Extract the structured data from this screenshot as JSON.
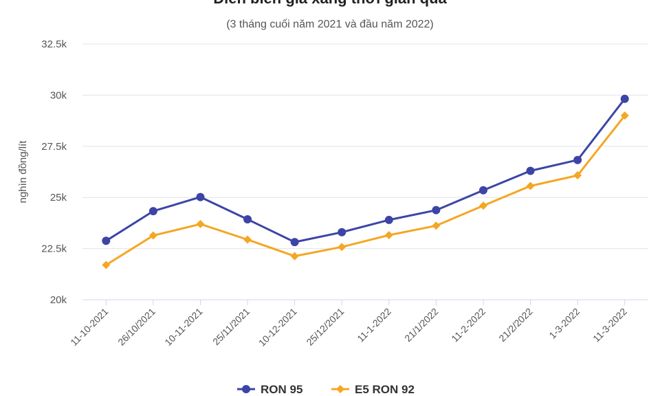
{
  "chart_data": {
    "type": "line",
    "title": "Diễn biến giá xăng thời gian qua",
    "subtitle": "(3 tháng cuối năm 2021 và đầu năm 2022)",
    "ylabel": "nghìn đồng/lít",
    "xlabel": "",
    "ylim": [
      20000,
      32500
    ],
    "yticks": [
      20000,
      22500,
      25000,
      27500,
      30000,
      32500
    ],
    "ytick_labels": [
      "20k",
      "22.5k",
      "25k",
      "27.5k",
      "30k",
      "32.5k"
    ],
    "grid": true,
    "legend_position": "bottom",
    "categories": [
      "11-10-2021",
      "26/10/2021",
      "10-11-2021",
      "25/11/2021",
      "10-12-2021",
      "25/12/2021",
      "11-1-2022",
      "21/1/2022",
      "11-2-2022",
      "21/2/2022",
      "1-3-2022",
      "11-3-2022"
    ],
    "series": [
      {
        "name": "RON 95",
        "color": "#3c45a5",
        "marker": "circle",
        "values": [
          22880,
          24330,
          25020,
          23930,
          22820,
          23300,
          23900,
          24380,
          25350,
          26300,
          26830,
          29820
        ]
      },
      {
        "name": "E5 RON 92",
        "color": "#f5a623",
        "marker": "diamond",
        "values": [
          21700,
          23140,
          23700,
          22940,
          22130,
          22580,
          23160,
          23620,
          24600,
          25560,
          26080,
          29000
        ]
      }
    ]
  }
}
